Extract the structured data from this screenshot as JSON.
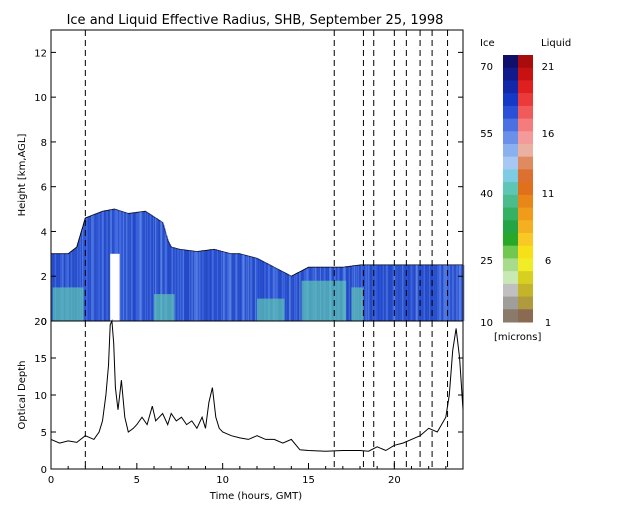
{
  "title": "Ice and Liquid Effective Radius, SHB, September 25, 1998",
  "colorbar": {
    "ice_label": "Ice",
    "liquid_label": "Liquid",
    "units": "[microns]",
    "ice_ticks": [
      "70",
      "55",
      "40",
      "25",
      "10"
    ],
    "liquid_ticks": [
      "21",
      "16",
      "11",
      "6",
      "1"
    ],
    "ice_colors": [
      "#10106a",
      "#101a8a",
      "#1228a8",
      "#1638c6",
      "#2a50d8",
      "#4a70e2",
      "#6a90ea",
      "#8ab0f0",
      "#a8c8f4",
      "#7ecbe4",
      "#5ec6b4",
      "#4cbc8c",
      "#36b062",
      "#24a444",
      "#28a828",
      "#70c850",
      "#a8dc8c",
      "#c8e8b4",
      "#c0c0c0",
      "#a09e9a",
      "#8a7a6a"
    ],
    "liquid_colors": [
      "#a80c0c",
      "#c81212",
      "#e02020",
      "#ec3a3a",
      "#f05a5a",
      "#f47c7c",
      "#f49a9a",
      "#eab0a0",
      "#e08a60",
      "#dc7030",
      "#e0701c",
      "#e88618",
      "#f09c1a",
      "#f4b020",
      "#f8c824",
      "#f8e018",
      "#f0ec28",
      "#d8d020",
      "#c4b42a",
      "#b09a3e",
      "#8a6a50"
    ]
  },
  "chart_data": [
    {
      "type": "heatmap",
      "ylabel": "Height [km,AGL]",
      "xlim": [
        0,
        24
      ],
      "ylim": [
        0,
        13
      ],
      "yticks": [
        "0",
        "2",
        "4",
        "6",
        "8",
        "10",
        "12"
      ],
      "dashed_lines_hours": [
        2.0,
        16.5,
        18.2,
        18.8,
        20.0,
        20.7,
        21.5,
        22.2,
        23.1
      ],
      "cloud_top_km": [
        [
          0,
          3.0
        ],
        [
          1.0,
          3.0
        ],
        [
          1.5,
          3.3
        ],
        [
          2.0,
          4.6
        ],
        [
          3.0,
          4.9
        ],
        [
          3.7,
          5.0
        ],
        [
          4.5,
          4.8
        ],
        [
          5.5,
          4.9
        ],
        [
          6.5,
          4.4
        ],
        [
          6.8,
          3.6
        ],
        [
          7.0,
          3.3
        ],
        [
          7.5,
          3.2
        ],
        [
          8.5,
          3.1
        ],
        [
          9.5,
          3.2
        ],
        [
          10.5,
          3.0
        ],
        [
          11.0,
          3.0
        ],
        [
          12.0,
          2.8
        ],
        [
          13.0,
          2.4
        ],
        [
          14.0,
          2.0
        ],
        [
          14.5,
          2.2
        ],
        [
          15.0,
          2.4
        ],
        [
          16.0,
          2.4
        ],
        [
          17.0,
          2.4
        ],
        [
          18.0,
          2.5
        ],
        [
          20.0,
          2.5
        ],
        [
          22.0,
          2.5
        ],
        [
          24.0,
          2.5
        ]
      ],
      "cloud_base_km": 0.0,
      "gap_hours": [
        3.45,
        4.0
      ]
    },
    {
      "type": "line",
      "xlabel": "Time (hours, GMT)",
      "ylabel": "Optical Depth",
      "xlim": [
        0,
        24
      ],
      "ylim": [
        0,
        20
      ],
      "xticks": [
        "0",
        "5",
        "10",
        "15",
        "20"
      ],
      "yticks": [
        "0",
        "5",
        "10",
        "15",
        "20"
      ],
      "x": [
        0,
        0.5,
        1.0,
        1.5,
        2.0,
        2.5,
        2.8,
        3.0,
        3.2,
        3.35,
        3.45,
        3.55,
        3.65,
        3.75,
        3.9,
        4.1,
        4.3,
        4.5,
        4.8,
        5.0,
        5.3,
        5.6,
        5.9,
        6.1,
        6.3,
        6.5,
        6.8,
        7.0,
        7.3,
        7.6,
        7.9,
        8.2,
        8.5,
        8.8,
        9.0,
        9.2,
        9.4,
        9.6,
        9.8,
        10.0,
        10.5,
        11.0,
        11.5,
        12.0,
        12.5,
        13.0,
        13.5,
        14.0,
        14.5,
        15.0,
        16.0,
        17.0,
        18.0,
        18.5,
        19.0,
        19.5,
        20.0,
        20.5,
        21.0,
        21.5,
        22.0,
        22.5,
        23.0,
        23.2,
        23.4,
        23.6,
        23.8,
        24.0
      ],
      "y": [
        4.0,
        3.5,
        3.8,
        3.6,
        4.5,
        4.0,
        5.0,
        6.5,
        10.0,
        14.0,
        19.5,
        20.0,
        17.0,
        11.0,
        8.0,
        12.0,
        7.0,
        5.0,
        5.5,
        6.0,
        7.0,
        6.0,
        8.5,
        6.5,
        7.0,
        7.5,
        6.0,
        7.5,
        6.5,
        7.0,
        6.0,
        6.5,
        5.5,
        7.0,
        5.5,
        9.0,
        11.0,
        7.0,
        5.5,
        5.0,
        4.5,
        4.2,
        4.0,
        4.5,
        4.0,
        4.0,
        3.5,
        4.0,
        2.6,
        2.5,
        2.4,
        2.5,
        2.5,
        2.4,
        3.0,
        2.5,
        3.2,
        3.5,
        4.0,
        4.5,
        5.5,
        5.0,
        7.0,
        10.0,
        16.0,
        19.0,
        15.0,
        8.0
      ]
    }
  ]
}
